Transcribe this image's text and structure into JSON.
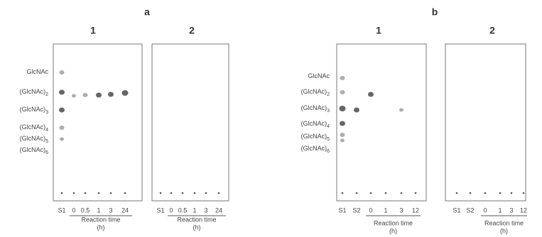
{
  "panels": [
    {
      "label": "a",
      "standards": [
        {
          "base": "GlcNAc"
        },
        {
          "base": "(GlcNAc)",
          "sub": "2"
        },
        {
          "base": "(GlcNAc)",
          "sub": "3"
        },
        {
          "base": "(GlcNAc)",
          "sub": "4"
        },
        {
          "base": "(GlcNAc)",
          "sub": "5"
        },
        {
          "base": "(GlcNAc)",
          "sub": "6"
        }
      ],
      "plates": [
        {
          "label": "1",
          "lanes": [
            "S1",
            "0",
            "0.5",
            "1",
            "3",
            "24"
          ],
          "axis_title": "Reaction time",
          "axis_unit": "(h)"
        },
        {
          "label": "2",
          "lanes": [
            "S1",
            "0",
            "0.5",
            "1",
            "3",
            "24"
          ],
          "axis_title": "Reaction time",
          "axis_unit": "(h)"
        }
      ]
    },
    {
      "label": "b",
      "standards": [
        {
          "base": "GlcNAc"
        },
        {
          "base": "(GlcNAc)",
          "sub": "2"
        },
        {
          "base": "(GlcNAc)",
          "sub": "3"
        },
        {
          "base": "(GlcNAc)",
          "sub": "4"
        },
        {
          "base": "(GlcNAc)",
          "sub": "5"
        },
        {
          "base": "(GlcNAc)",
          "sub": "6"
        }
      ],
      "plates": [
        {
          "label": "1",
          "lanes": [
            "S1",
            "S2",
            "0",
            "1",
            "3",
            "12"
          ],
          "axis_title": "Reaction time",
          "axis_unit": "(h)"
        },
        {
          "label": "2",
          "lanes": [
            "S1",
            "S2",
            "0",
            "1",
            "3",
            "12"
          ],
          "axis_title": "Reaction time",
          "axis_unit": "(h)"
        }
      ]
    }
  ]
}
